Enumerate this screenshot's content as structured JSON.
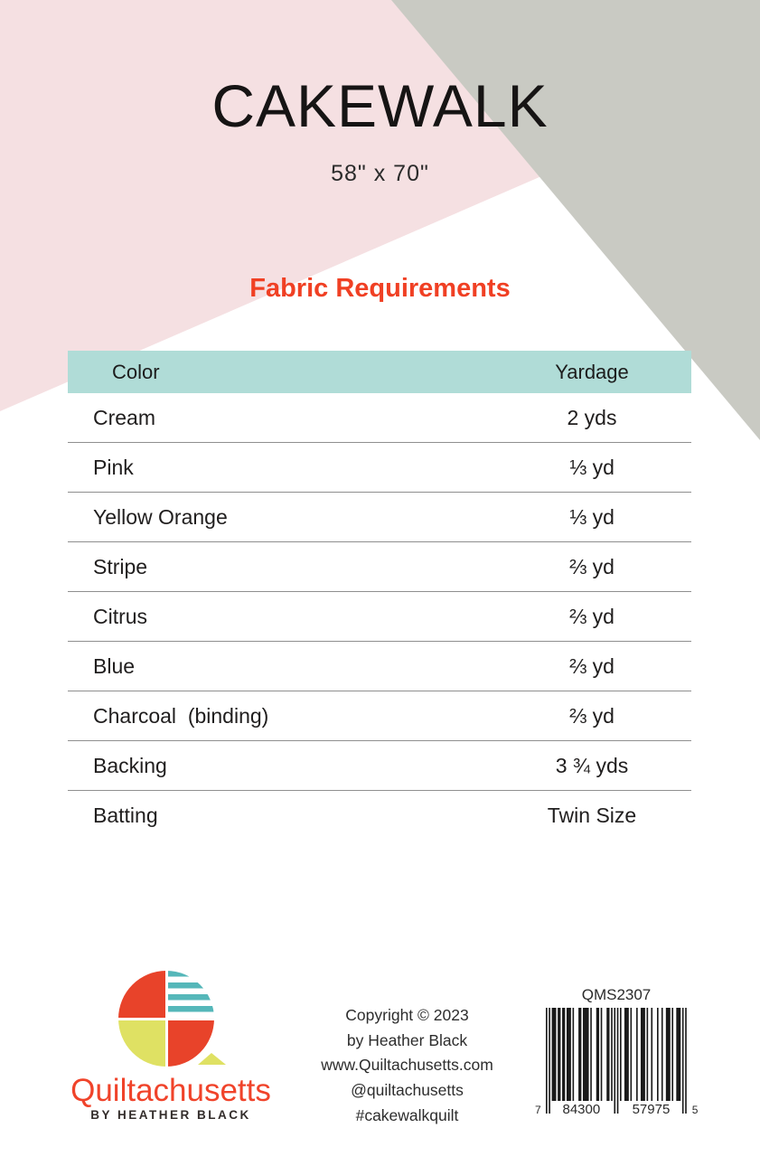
{
  "header": {
    "title": "CAKEWALK",
    "dimensions": "58\" x 70\""
  },
  "section": {
    "title": "Fabric Requirements"
  },
  "table": {
    "columns": [
      "Color",
      "Yardage"
    ],
    "rows": [
      {
        "color": "Cream",
        "yardage": "2 yds"
      },
      {
        "color": "Pink",
        "yardage": "⅓ yd"
      },
      {
        "color": "Yellow Orange",
        "yardage": "⅓ yd"
      },
      {
        "color": "Stripe",
        "yardage": "⅔ yd"
      },
      {
        "color": "Citrus",
        "yardage": "⅔ yd"
      },
      {
        "color": "Blue",
        "yardage": "⅔ yd"
      },
      {
        "color": "Charcoal  (binding)",
        "yardage": "⅔ yd"
      },
      {
        "color": "Backing",
        "yardage": "3 ¾ yds"
      },
      {
        "color": "Batting",
        "yardage": "Twin Size"
      }
    ]
  },
  "footer": {
    "brand": {
      "name": "Quiltachusetts",
      "byline": "BY HEATHER BLACK"
    },
    "credits": [
      "Copyright © 2023",
      "by Heather Black",
      "www.Quiltachusetts.com",
      "@quiltachusetts",
      "#cakewalkquilt"
    ],
    "sku": "QMS2307",
    "barcode": {
      "left_digit": "7",
      "group1": "84300",
      "group2": "57975",
      "right_digit": "5"
    }
  },
  "colors": {
    "background_pink": "#f5e0e2",
    "background_gray": "#c9cac3",
    "table_header_teal": "#b0dcd7",
    "accent_red": "#f04024",
    "logo_red": "#e8432a",
    "logo_teal": "#55b7b9",
    "logo_citron": "#dfe163"
  }
}
